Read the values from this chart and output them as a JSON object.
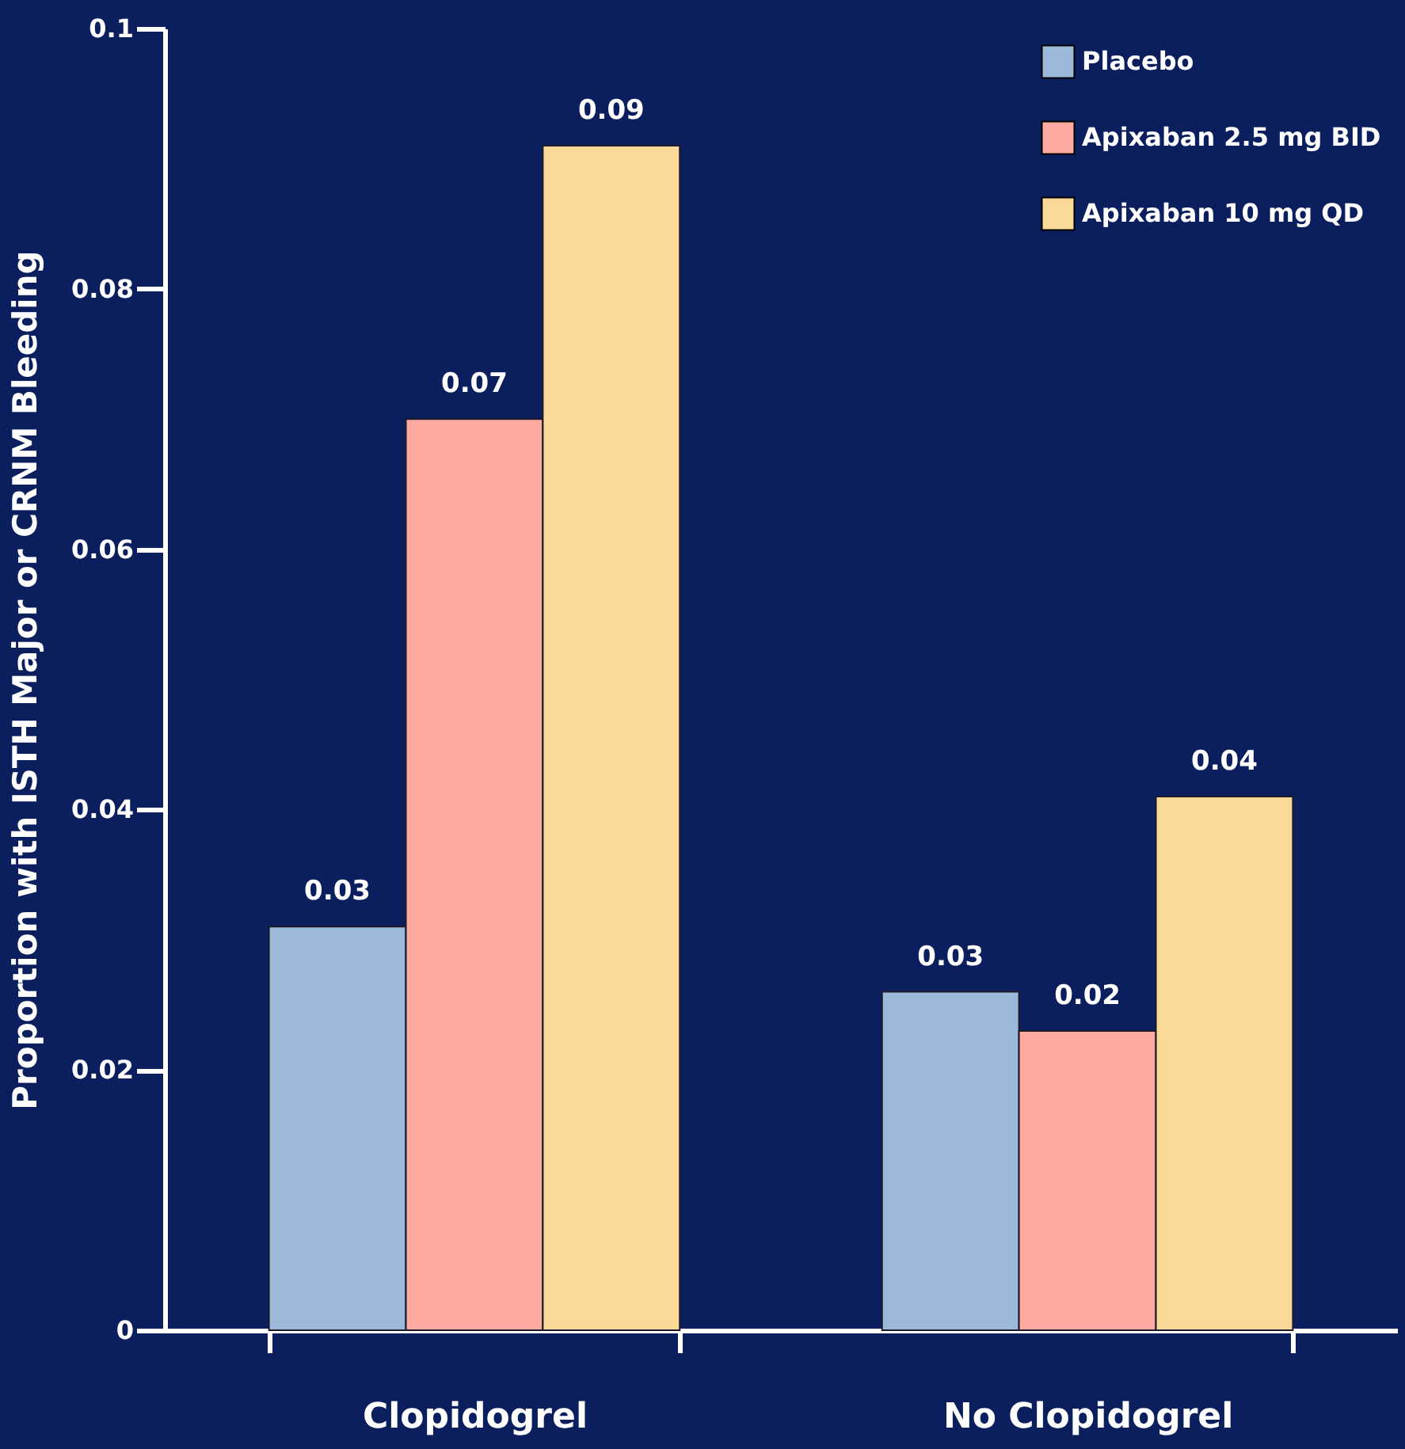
{
  "chart_data": {
    "type": "bar",
    "ylabel": "Proportion with ISTH Major or CRNM Bleeding",
    "categories": [
      "Clopidogrel",
      "No Clopidogrel"
    ],
    "series": [
      {
        "name": "Placebo",
        "color": "#9bb9d9",
        "values": [
          0.031,
          0.026
        ],
        "value_labels": [
          "0.03",
          "0.03"
        ]
      },
      {
        "name": "Apixaban 2.5 mg BID",
        "color": "#ffaaa0",
        "values": [
          0.07,
          0.023
        ],
        "value_labels": [
          "0.07",
          "0.02"
        ]
      },
      {
        "name": "Apixaban 10 mg QD",
        "color": "#f9d898",
        "values": [
          0.091,
          0.041
        ],
        "value_labels": [
          "0.09",
          "0.04"
        ]
      }
    ],
    "ylim": [
      0,
      0.1
    ],
    "yticks": [
      0,
      0.02,
      0.04,
      0.06,
      0.08,
      0.1
    ],
    "grid": false,
    "legend": "top right"
  }
}
